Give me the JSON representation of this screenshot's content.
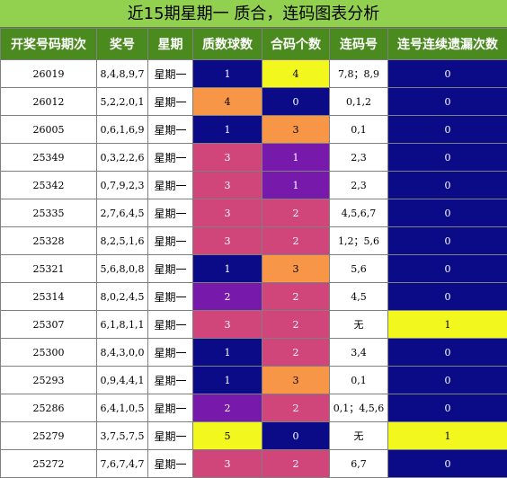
{
  "title": "近15期星期一 质合，连码图表分析",
  "headers": [
    "开奖号码期次",
    "奖号",
    "星期",
    "质数球数",
    "合码个数",
    "连码号",
    "连号连续遗漏次数"
  ],
  "colors": {
    "navy": "#0b0b87",
    "orange": "#f79646",
    "pink": "#d0457a",
    "purple": "#7719aa",
    "yellow": "#f2f71e",
    "white": "#ffffff"
  },
  "rows": [
    {
      "period": "26019",
      "nums": "8,4,8,9,7",
      "week": "星期一",
      "prime": "1",
      "prime_c": "navy",
      "comp": "4",
      "comp_c": "yellow",
      "consec": "7,8；8,9",
      "miss": "0",
      "miss_c": "navy"
    },
    {
      "period": "26012",
      "nums": "5,2,2,0,1",
      "week": "星期一",
      "prime": "4",
      "prime_c": "orange",
      "comp": "0",
      "comp_c": "navy",
      "consec": "0,1,2",
      "miss": "0",
      "miss_c": "navy"
    },
    {
      "period": "26005",
      "nums": "0,6,1,6,9",
      "week": "星期一",
      "prime": "1",
      "prime_c": "navy",
      "comp": "3",
      "comp_c": "orange",
      "consec": "0,1",
      "miss": "0",
      "miss_c": "navy"
    },
    {
      "period": "25349",
      "nums": "0,3,2,2,6",
      "week": "星期一",
      "prime": "3",
      "prime_c": "pink",
      "comp": "1",
      "comp_c": "purple",
      "consec": "2,3",
      "miss": "0",
      "miss_c": "navy"
    },
    {
      "period": "25342",
      "nums": "0,7,9,2,3",
      "week": "星期一",
      "prime": "3",
      "prime_c": "pink",
      "comp": "1",
      "comp_c": "purple",
      "consec": "2,3",
      "miss": "0",
      "miss_c": "navy"
    },
    {
      "period": "25335",
      "nums": "2,7,6,4,5",
      "week": "星期一",
      "prime": "3",
      "prime_c": "pink",
      "comp": "2",
      "comp_c": "pink",
      "consec": "4,5,6,7",
      "miss": "0",
      "miss_c": "navy"
    },
    {
      "period": "25328",
      "nums": "8,2,5,1,6",
      "week": "星期一",
      "prime": "3",
      "prime_c": "pink",
      "comp": "2",
      "comp_c": "pink",
      "consec": "1,2；5,6",
      "miss": "0",
      "miss_c": "navy"
    },
    {
      "period": "25321",
      "nums": "5,6,8,0,8",
      "week": "星期一",
      "prime": "1",
      "prime_c": "navy",
      "comp": "3",
      "comp_c": "orange",
      "consec": "5,6",
      "miss": "0",
      "miss_c": "navy"
    },
    {
      "period": "25314",
      "nums": "8,0,2,4,5",
      "week": "星期一",
      "prime": "2",
      "prime_c": "purple",
      "comp": "2",
      "comp_c": "pink",
      "consec": "4,5",
      "miss": "0",
      "miss_c": "navy"
    },
    {
      "period": "25307",
      "nums": "6,1,8,1,1",
      "week": "星期一",
      "prime": "3",
      "prime_c": "pink",
      "comp": "2",
      "comp_c": "pink",
      "consec": "无",
      "miss": "1",
      "miss_c": "yellow"
    },
    {
      "period": "25300",
      "nums": "8,4,3,0,0",
      "week": "星期一",
      "prime": "1",
      "prime_c": "navy",
      "comp": "2",
      "comp_c": "pink",
      "consec": "3,4",
      "miss": "0",
      "miss_c": "navy"
    },
    {
      "period": "25293",
      "nums": "0,9,4,4,1",
      "week": "星期一",
      "prime": "1",
      "prime_c": "navy",
      "comp": "3",
      "comp_c": "orange",
      "consec": "0,1",
      "miss": "0",
      "miss_c": "navy"
    },
    {
      "period": "25286",
      "nums": "6,4,1,0,5",
      "week": "星期一",
      "prime": "2",
      "prime_c": "purple",
      "comp": "2",
      "comp_c": "pink",
      "consec": "0,1；4,5,6",
      "miss": "0",
      "miss_c": "navy"
    },
    {
      "period": "25279",
      "nums": "3,7,5,7,5",
      "week": "星期一",
      "prime": "5",
      "prime_c": "yellow",
      "comp": "0",
      "comp_c": "navy",
      "consec": "无",
      "miss": "1",
      "miss_c": "yellow"
    },
    {
      "period": "25272",
      "nums": "7,6,7,4,7",
      "week": "星期一",
      "prime": "3",
      "prime_c": "pink",
      "comp": "2",
      "comp_c": "pink",
      "consec": "6,7",
      "miss": "0",
      "miss_c": "navy"
    }
  ]
}
